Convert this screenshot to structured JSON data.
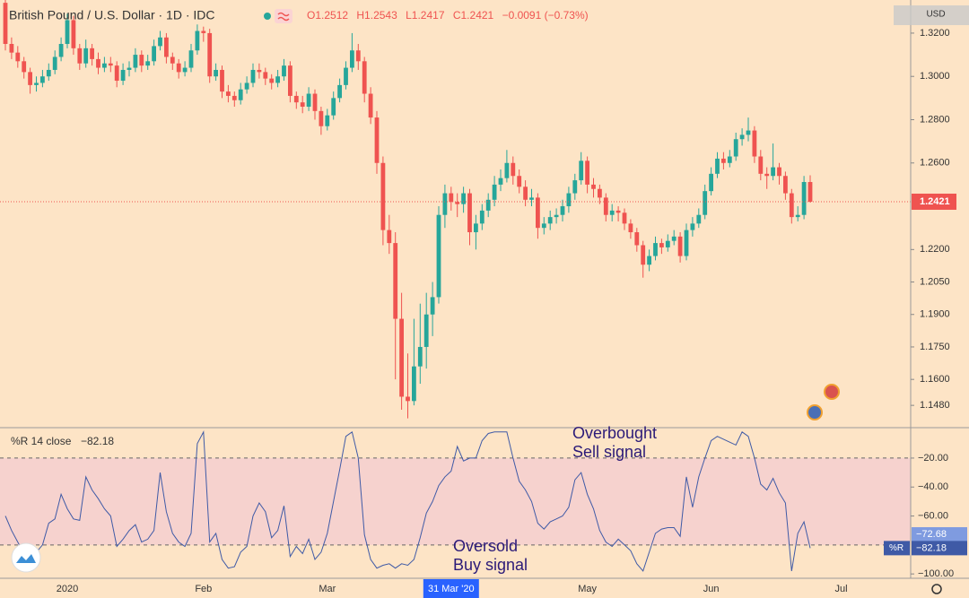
{
  "chart_data": [
    {
      "type": "candlestick",
      "title": "British Pound / U.S. Dollar · 1D · IDC",
      "header_values": [
        "O1.2512",
        "H1.2543",
        "L1.2417",
        "C1.2421",
        "−0.0091 (−0.73%)"
      ],
      "currency": "USD",
      "up_color": "#26a69a",
      "down_color": "#ef5350",
      "crosshair": 72,
      "categories": [
        null,
        null,
        null,
        null,
        null,
        null,
        null,
        null,
        null,
        null,
        "2020",
        null,
        null,
        null,
        null,
        null,
        null,
        null,
        null,
        null,
        null,
        null,
        null,
        null,
        null,
        null,
        null,
        null,
        null,
        null,
        null,
        null,
        "Feb",
        null,
        null,
        null,
        null,
        null,
        null,
        null,
        null,
        null,
        null,
        null,
        null,
        null,
        null,
        null,
        null,
        null,
        null,
        null,
        "Mar",
        null,
        null,
        null,
        null,
        null,
        null,
        null,
        null,
        null,
        null,
        null,
        null,
        null,
        null,
        null,
        null,
        null,
        null,
        null,
        "31 Mar '20",
        null,
        null,
        null,
        null,
        null,
        null,
        null,
        null,
        null,
        null,
        null,
        null,
        null,
        null,
        null,
        null,
        null,
        null,
        null,
        null,
        null,
        "May",
        null,
        null,
        null,
        null,
        null,
        null,
        null,
        null,
        null,
        null,
        null,
        null,
        null,
        null,
        null,
        null,
        null,
        null,
        null,
        "Jun",
        null,
        null,
        null,
        null,
        null,
        null,
        null,
        null,
        null,
        null,
        null,
        null,
        null,
        null,
        null,
        null,
        null,
        null,
        null,
        null,
        "Jul"
      ],
      "ohlc": [
        [
          1.334,
          1.336,
          1.312,
          1.315
        ],
        [
          1.315,
          1.318,
          1.308,
          1.311
        ],
        [
          1.311,
          1.314,
          1.304,
          1.307
        ],
        [
          1.307,
          1.309,
          1.299,
          1.302
        ],
        [
          1.302,
          1.304,
          1.292,
          1.296
        ],
        [
          1.296,
          1.3,
          1.293,
          1.297
        ],
        [
          1.297,
          1.303,
          1.295,
          1.3
        ],
        [
          1.3,
          1.306,
          1.298,
          1.303
        ],
        [
          1.303,
          1.312,
          1.301,
          1.309
        ],
        [
          1.309,
          1.318,
          1.307,
          1.315
        ],
        [
          1.315,
          1.329,
          1.313,
          1.326
        ],
        [
          1.326,
          1.328,
          1.31,
          1.313
        ],
        [
          1.313,
          1.315,
          1.303,
          1.306
        ],
        [
          1.306,
          1.317,
          1.304,
          1.313
        ],
        [
          1.313,
          1.315,
          1.305,
          1.308
        ],
        [
          1.308,
          1.311,
          1.301,
          1.304
        ],
        [
          1.304,
          1.309,
          1.302,
          1.306
        ],
        [
          1.306,
          1.309,
          1.302,
          1.305
        ],
        [
          1.305,
          1.307,
          1.295,
          1.298
        ],
        [
          1.298,
          1.306,
          1.296,
          1.303
        ],
        [
          1.303,
          1.307,
          1.3,
          1.304
        ],
        [
          1.304,
          1.313,
          1.302,
          1.31
        ],
        [
          1.31,
          1.312,
          1.302,
          1.305
        ],
        [
          1.305,
          1.31,
          1.303,
          1.307
        ],
        [
          1.307,
          1.317,
          1.305,
          1.314
        ],
        [
          1.314,
          1.321,
          1.312,
          1.318
        ],
        [
          1.318,
          1.32,
          1.306,
          1.309
        ],
        [
          1.309,
          1.311,
          1.303,
          1.306
        ],
        [
          1.306,
          1.308,
          1.299,
          1.302
        ],
        [
          1.302,
          1.307,
          1.3,
          1.304
        ],
        [
          1.304,
          1.315,
          1.302,
          1.312
        ],
        [
          1.312,
          1.324,
          1.31,
          1.321
        ],
        [
          1.321,
          1.323,
          1.316,
          1.32
        ],
        [
          1.32,
          1.322,
          1.297,
          1.3
        ],
        [
          1.3,
          1.306,
          1.298,
          1.303
        ],
        [
          1.303,
          1.305,
          1.29,
          1.293
        ],
        [
          1.293,
          1.296,
          1.288,
          1.291
        ],
        [
          1.291,
          1.293,
          1.286,
          1.289
        ],
        [
          1.289,
          1.297,
          1.287,
          1.294
        ],
        [
          1.294,
          1.3,
          1.292,
          1.297
        ],
        [
          1.297,
          1.306,
          1.295,
          1.303
        ],
        [
          1.303,
          1.306,
          1.299,
          1.302
        ],
        [
          1.302,
          1.304,
          1.296,
          1.299
        ],
        [
          1.299,
          1.301,
          1.294,
          1.297
        ],
        [
          1.297,
          1.303,
          1.295,
          1.3
        ],
        [
          1.3,
          1.308,
          1.298,
          1.305
        ],
        [
          1.305,
          1.307,
          1.288,
          1.291
        ],
        [
          1.291,
          1.293,
          1.285,
          1.288
        ],
        [
          1.288,
          1.291,
          1.283,
          1.286
        ],
        [
          1.286,
          1.295,
          1.284,
          1.292
        ],
        [
          1.292,
          1.294,
          1.28,
          1.284
        ],
        [
          1.284,
          1.286,
          1.273,
          1.277
        ],
        [
          1.277,
          1.285,
          1.275,
          1.282
        ],
        [
          1.282,
          1.293,
          1.28,
          1.29
        ],
        [
          1.29,
          1.299,
          1.288,
          1.296
        ],
        [
          1.296,
          1.307,
          1.294,
          1.304
        ],
        [
          1.304,
          1.32,
          1.302,
          1.312
        ],
        [
          1.312,
          1.315,
          1.303,
          1.307
        ],
        [
          1.307,
          1.309,
          1.288,
          1.292
        ],
        [
          1.292,
          1.295,
          1.278,
          1.281
        ],
        [
          1.281,
          1.284,
          1.255,
          1.26
        ],
        [
          1.26,
          1.263,
          1.222,
          1.229
        ],
        [
          1.229,
          1.236,
          1.218,
          1.223
        ],
        [
          1.223,
          1.228,
          1.16,
          1.188
        ],
        [
          1.188,
          1.2,
          1.146,
          1.152
        ],
        [
          1.152,
          1.172,
          1.142,
          1.15
        ],
        [
          1.15,
          1.188,
          1.148,
          1.166
        ],
        [
          1.166,
          1.195,
          1.158,
          1.175
        ],
        [
          1.175,
          1.2,
          1.165,
          1.19
        ],
        [
          1.19,
          1.205,
          1.18,
          1.198
        ],
        [
          1.198,
          1.24,
          1.195,
          1.236
        ],
        [
          1.236,
          1.25,
          1.23,
          1.246
        ],
        [
          1.246,
          1.249,
          1.238,
          1.242
        ],
        [
          1.242,
          1.246,
          1.235,
          1.241
        ],
        [
          1.241,
          1.249,
          1.237,
          1.246
        ],
        [
          1.246,
          1.248,
          1.222,
          1.228
        ],
        [
          1.228,
          1.236,
          1.22,
          1.232
        ],
        [
          1.232,
          1.241,
          1.229,
          1.238
        ],
        [
          1.238,
          1.246,
          1.235,
          1.243
        ],
        [
          1.243,
          1.254,
          1.24,
          1.25
        ],
        [
          1.25,
          1.257,
          1.247,
          1.253
        ],
        [
          1.253,
          1.266,
          1.251,
          1.26
        ],
        [
          1.26,
          1.263,
          1.25,
          1.254
        ],
        [
          1.254,
          1.257,
          1.246,
          1.249
        ],
        [
          1.249,
          1.252,
          1.24,
          1.243
        ],
        [
          1.243,
          1.248,
          1.24,
          1.244
        ],
        [
          1.244,
          1.246,
          1.225,
          1.23
        ],
        [
          1.23,
          1.235,
          1.227,
          1.232
        ],
        [
          1.232,
          1.238,
          1.229,
          1.235
        ],
        [
          1.235,
          1.239,
          1.232,
          1.236
        ],
        [
          1.236,
          1.243,
          1.233,
          1.24
        ],
        [
          1.24,
          1.249,
          1.237,
          1.246
        ],
        [
          1.246,
          1.255,
          1.243,
          1.252
        ],
        [
          1.252,
          1.265,
          1.25,
          1.261
        ],
        [
          1.261,
          1.263,
          1.246,
          1.25
        ],
        [
          1.25,
          1.253,
          1.244,
          1.248
        ],
        [
          1.248,
          1.25,
          1.241,
          1.244
        ],
        [
          1.244,
          1.246,
          1.233,
          1.236
        ],
        [
          1.236,
          1.241,
          1.233,
          1.238
        ],
        [
          1.238,
          1.24,
          1.233,
          1.237
        ],
        [
          1.237,
          1.239,
          1.229,
          1.232
        ],
        [
          1.232,
          1.234,
          1.225,
          1.228
        ],
        [
          1.228,
          1.23,
          1.219,
          1.222
        ],
        [
          1.222,
          1.224,
          1.207,
          1.213
        ],
        [
          1.213,
          1.22,
          1.21,
          1.217
        ],
        [
          1.217,
          1.226,
          1.215,
          1.223
        ],
        [
          1.223,
          1.225,
          1.218,
          1.221
        ],
        [
          1.221,
          1.227,
          1.219,
          1.224
        ],
        [
          1.224,
          1.229,
          1.222,
          1.226
        ],
        [
          1.226,
          1.228,
          1.214,
          1.217
        ],
        [
          1.217,
          1.232,
          1.215,
          1.229
        ],
        [
          1.229,
          1.235,
          1.226,
          1.232
        ],
        [
          1.232,
          1.239,
          1.23,
          1.236
        ],
        [
          1.236,
          1.25,
          1.234,
          1.247
        ],
        [
          1.247,
          1.258,
          1.245,
          1.255
        ],
        [
          1.255,
          1.265,
          1.253,
          1.262
        ],
        [
          1.262,
          1.265,
          1.257,
          1.26
        ],
        [
          1.26,
          1.266,
          1.258,
          1.263
        ],
        [
          1.263,
          1.274,
          1.261,
          1.271
        ],
        [
          1.271,
          1.276,
          1.268,
          1.273
        ],
        [
          1.273,
          1.281,
          1.27,
          1.275
        ],
        [
          1.275,
          1.277,
          1.26,
          1.263
        ],
        [
          1.263,
          1.266,
          1.252,
          1.255
        ],
        [
          1.255,
          1.258,
          1.248,
          1.254
        ],
        [
          1.254,
          1.269,
          1.252,
          1.258
        ],
        [
          1.258,
          1.26,
          1.25,
          1.254
        ],
        [
          1.254,
          1.256,
          1.243,
          1.246
        ],
        [
          1.246,
          1.248,
          1.232,
          1.235
        ],
        [
          1.235,
          1.24,
          1.233,
          1.236
        ],
        [
          1.236,
          1.254,
          1.234,
          1.2512
        ],
        [
          1.2512,
          1.2543,
          1.2417,
          1.2421
        ],
        null,
        null,
        null,
        null,
        null
      ],
      "last": {
        "value": 1.2421,
        "label": "1.2421"
      },
      "ylim": [
        1.1377,
        1.3353
      ],
      "yticks": [
        {
          "value": 1.32,
          "label": "1.3200"
        },
        {
          "value": 1.3,
          "label": "1.3000"
        },
        {
          "value": 1.28,
          "label": "1.2800"
        },
        {
          "value": 1.26,
          "label": "1.2600"
        },
        {
          "value": 1.22,
          "label": "1.2200"
        },
        {
          "value": 1.205,
          "label": "1.2050"
        },
        {
          "value": 1.19,
          "label": "1.1900"
        },
        {
          "value": 1.175,
          "label": "1.1750"
        },
        {
          "value": 1.16,
          "label": "1.1600"
        },
        {
          "value": 1.148,
          "label": "1.1480"
        }
      ]
    },
    {
      "type": "line",
      "title": "%R 14 close",
      "color": "#3f5aa6",
      "band": [
        -80,
        -20
      ],
      "values": [
        -60,
        -70,
        -78,
        -86,
        -90,
        -85,
        -80,
        -65,
        -62,
        -45,
        -55,
        -62,
        -63,
        -33,
        -42,
        -48,
        -55,
        -60,
        -81,
        -76,
        -70,
        -66,
        -78,
        -76,
        -70,
        -30,
        -57,
        -72,
        -78,
        -81,
        -72,
        -10,
        -2,
        -78,
        -72,
        -90,
        -96,
        -95,
        -85,
        -81,
        -60,
        -51,
        -57,
        -75,
        -70,
        -53,
        -88,
        -81,
        -86,
        -76,
        -90,
        -85,
        -72,
        -50,
        -28,
        -5,
        -2,
        -20,
        -73,
        -90,
        -96,
        -94,
        -93,
        -96,
        -93,
        -94,
        -90,
        -75,
        -58,
        -50,
        -39,
        -33,
        -29,
        -12,
        -22,
        -20,
        -20,
        -8,
        -3,
        -2,
        -2,
        -2,
        -20,
        -36,
        -42,
        -50,
        -65,
        -69,
        -64,
        -62,
        -60,
        -54,
        -35,
        -30,
        -45,
        -55,
        -70,
        -78,
        -81,
        -76,
        -80,
        -84,
        -93,
        -98,
        -85,
        -72,
        -69,
        -68,
        -68,
        -74,
        -33,
        -54,
        -33,
        -20,
        -8,
        -5,
        -7,
        -9,
        -11,
        -2,
        -5,
        -20,
        -38,
        -42,
        -34,
        -44,
        -51,
        -98,
        -72,
        -64,
        -82.18,
        null,
        null,
        null,
        null,
        null
      ],
      "markers": [
        {
          "value": -72.68,
          "label": "−72.68"
        },
        {
          "value": -82.18,
          "label": "−82.18"
        }
      ],
      "marker_tag": "%R",
      "ylim": [
        -103,
        1
      ],
      "yticks": [
        {
          "value": -20,
          "label": "−20.00"
        },
        {
          "value": -40,
          "label": "−40.00"
        },
        {
          "value": -60,
          "label": "−60.00"
        },
        {
          "value": -100,
          "label": "−100.00"
        }
      ],
      "annotations": [
        {
          "lines": [
            "Overbought",
            "Sell signal"
          ]
        },
        {
          "lines": [
            "Oversold",
            "Buy signal"
          ]
        }
      ]
    }
  ]
}
